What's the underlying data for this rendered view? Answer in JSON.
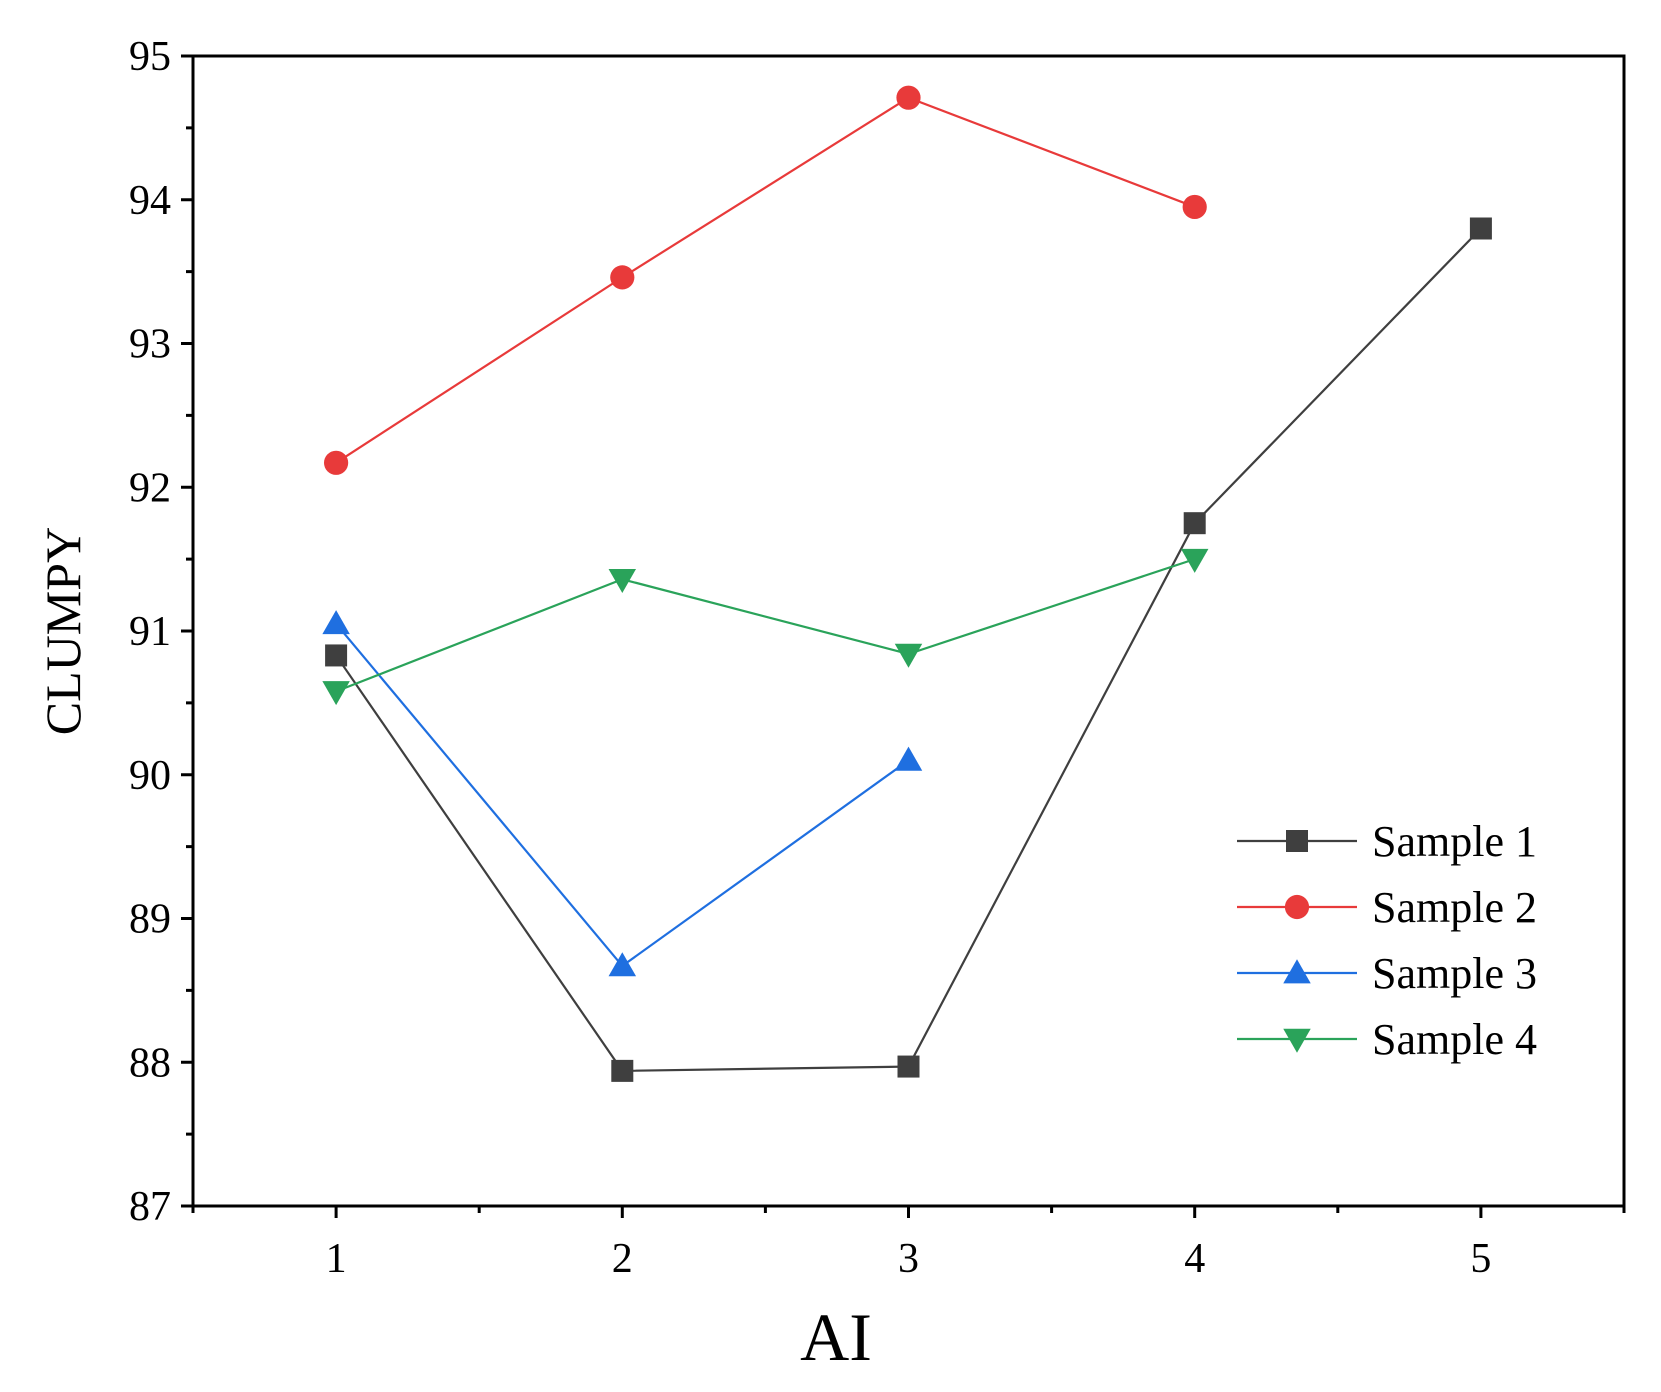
{
  "chart_data": {
    "type": "line",
    "xlabel": "AI",
    "ylabel": "CLUMPY",
    "xlim": [
      0.5,
      5.5
    ],
    "ylim": [
      87,
      95
    ],
    "x_ticks": [
      1,
      2,
      3,
      4,
      5
    ],
    "y_ticks": [
      87,
      88,
      89,
      90,
      91,
      92,
      93,
      94,
      95
    ],
    "legend_position": "bottom-right",
    "grid": false,
    "series": [
      {
        "name": "Sample 1",
        "color": "#3f3f3f",
        "marker": "square",
        "x": [
          1,
          2,
          3,
          4,
          5
        ],
        "values": [
          90.83,
          87.94,
          87.97,
          91.75,
          93.8
        ]
      },
      {
        "name": "Sample 2",
        "color": "#e83a3a",
        "marker": "circle",
        "x": [
          1,
          2,
          3,
          4
        ],
        "values": [
          92.17,
          93.46,
          94.71,
          93.95
        ]
      },
      {
        "name": "Sample 3",
        "color": "#1f6fe0",
        "marker": "triangle-up",
        "x": [
          1,
          2,
          3
        ],
        "values": [
          91.05,
          88.67,
          90.1
        ]
      },
      {
        "name": "Sample 4",
        "color": "#2aa35a",
        "marker": "triangle-down",
        "x": [
          1,
          2,
          3,
          4
        ],
        "values": [
          90.58,
          91.36,
          90.84,
          91.5
        ]
      }
    ]
  }
}
